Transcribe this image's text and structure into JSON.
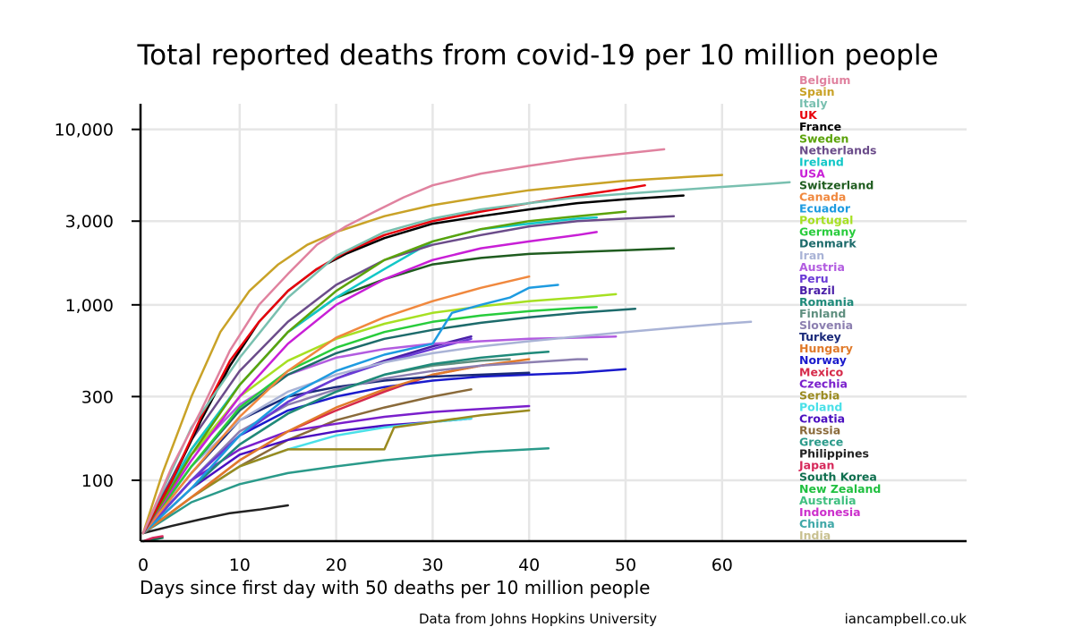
{
  "chart_data": {
    "type": "line",
    "title": "Total reported deaths from covid-19 per 10 million people",
    "xlabel": "Days since first day with 50 deaths per 10 million people",
    "ylabel": "",
    "yscale": "log",
    "xlim": [
      0,
      85
    ],
    "ylim": [
      45,
      14000
    ],
    "x_ticks": [
      0,
      10,
      20,
      30,
      40,
      50,
      60
    ],
    "y_ticks": [
      100,
      300,
      1000,
      3000,
      10000
    ],
    "y_tick_labels": [
      "100",
      "300",
      "1,000",
      "3,000",
      "10,000"
    ],
    "grid": true,
    "legend_position": "right",
    "source_note": "Data from Johns Hopkins University",
    "credit": "iancampbell.co.uk",
    "series": [
      {
        "name": "Belgium",
        "color": "#e0829f",
        "x": [
          0,
          3,
          6,
          9,
          12,
          15,
          18,
          21,
          24,
          27,
          30,
          35,
          40,
          45,
          50,
          54
        ],
        "y": [
          50,
          120,
          250,
          550,
          1000,
          1500,
          2200,
          2800,
          3400,
          4100,
          4800,
          5600,
          6200,
          6800,
          7300,
          7700
        ]
      },
      {
        "name": "Spain",
        "color": "#c9a227",
        "x": [
          0,
          2,
          5,
          8,
          11,
          14,
          17,
          20,
          25,
          30,
          35,
          40,
          45,
          50,
          55,
          60
        ],
        "y": [
          50,
          110,
          300,
          700,
          1200,
          1700,
          2200,
          2600,
          3200,
          3700,
          4100,
          4500,
          4800,
          5100,
          5300,
          5500
        ]
      },
      {
        "name": "Italy",
        "color": "#79c0b0",
        "x": [
          0,
          5,
          10,
          15,
          20,
          25,
          30,
          35,
          40,
          45,
          50,
          55,
          60,
          65,
          67
        ],
        "y": [
          50,
          200,
          500,
          1100,
          1900,
          2600,
          3100,
          3500,
          3800,
          4100,
          4300,
          4500,
          4700,
          4900,
          5000
        ]
      },
      {
        "name": "UK",
        "color": "#e8000b",
        "x": [
          0,
          3,
          6,
          9,
          12,
          15,
          18,
          21,
          25,
          30,
          35,
          40,
          45,
          50,
          52
        ],
        "y": [
          50,
          100,
          230,
          480,
          800,
          1200,
          1600,
          2000,
          2500,
          3000,
          3400,
          3800,
          4200,
          4600,
          4800
        ]
      },
      {
        "name": "France",
        "color": "#000000",
        "x": [
          0,
          3,
          6,
          9,
          12,
          15,
          18,
          21,
          25,
          30,
          35,
          40,
          45,
          50,
          56
        ],
        "y": [
          50,
          100,
          220,
          450,
          800,
          1200,
          1600,
          1950,
          2400,
          2900,
          3200,
          3500,
          3800,
          4000,
          4200
        ]
      },
      {
        "name": "Sweden",
        "color": "#5ba30a",
        "x": [
          0,
          5,
          10,
          15,
          20,
          25,
          30,
          35,
          40,
          45,
          50
        ],
        "y": [
          50,
          140,
          350,
          700,
          1200,
          1800,
          2300,
          2700,
          3000,
          3200,
          3400
        ]
      },
      {
        "name": "Netherlands",
        "color": "#6b4c8a",
        "x": [
          0,
          5,
          10,
          15,
          20,
          25,
          30,
          35,
          40,
          45,
          50,
          55
        ],
        "y": [
          50,
          170,
          420,
          800,
          1300,
          1800,
          2200,
          2500,
          2800,
          3000,
          3100,
          3200
        ]
      },
      {
        "name": "Ireland",
        "color": "#12c7c7",
        "x": [
          0,
          5,
          10,
          15,
          20,
          25,
          30,
          35,
          40,
          45,
          47
        ],
        "y": [
          50,
          150,
          350,
          700,
          1100,
          1600,
          2300,
          2700,
          2900,
          3100,
          3150
        ]
      },
      {
        "name": "USA",
        "color": "#c81fd6",
        "x": [
          0,
          5,
          10,
          15,
          20,
          25,
          30,
          35,
          40,
          45,
          47
        ],
        "y": [
          50,
          130,
          300,
          600,
          1000,
          1400,
          1800,
          2100,
          2300,
          2500,
          2600
        ]
      },
      {
        "name": "Switzerland",
        "color": "#1f5c1f",
        "x": [
          0,
          5,
          10,
          15,
          20,
          25,
          30,
          35,
          40,
          45,
          50,
          55
        ],
        "y": [
          50,
          150,
          350,
          700,
          1100,
          1400,
          1700,
          1850,
          1950,
          2000,
          2050,
          2100
        ]
      },
      {
        "name": "Canada",
        "color": "#f0883e",
        "x": [
          0,
          5,
          10,
          15,
          20,
          25,
          30,
          35,
          40
        ],
        "y": [
          50,
          110,
          230,
          420,
          650,
          850,
          1050,
          1250,
          1450
        ]
      },
      {
        "name": "Ecuador",
        "color": "#1e9be0",
        "x": [
          0,
          5,
          10,
          15,
          20,
          25,
          30,
          32,
          35,
          38,
          40,
          43
        ],
        "y": [
          50,
          90,
          180,
          300,
          420,
          520,
          600,
          900,
          1000,
          1100,
          1250,
          1300
        ]
      },
      {
        "name": "Portugal",
        "color": "#a6e022",
        "x": [
          0,
          5,
          10,
          15,
          20,
          25,
          30,
          35,
          40,
          45,
          49
        ],
        "y": [
          50,
          140,
          300,
          480,
          640,
          780,
          900,
          980,
          1050,
          1100,
          1150
        ]
      },
      {
        "name": "Germany",
        "color": "#28cc3c",
        "x": [
          0,
          5,
          10,
          15,
          20,
          25,
          30,
          35,
          40,
          45,
          47
        ],
        "y": [
          50,
          120,
          260,
          420,
          570,
          700,
          800,
          870,
          920,
          960,
          970
        ]
      },
      {
        "name": "Denmark",
        "color": "#1d6b6b",
        "x": [
          0,
          5,
          10,
          15,
          20,
          25,
          30,
          35,
          40,
          45,
          51
        ],
        "y": [
          50,
          120,
          250,
          400,
          530,
          640,
          720,
          790,
          850,
          900,
          950
        ]
      },
      {
        "name": "Iran",
        "color": "#a9b3d6",
        "x": [
          0,
          5,
          10,
          15,
          20,
          25,
          30,
          35,
          40,
          45,
          50,
          55,
          60,
          63
        ],
        "y": [
          50,
          120,
          220,
          320,
          400,
          470,
          530,
          580,
          620,
          660,
          700,
          740,
          780,
          800
        ]
      },
      {
        "name": "Austria",
        "color": "#b25ce0",
        "x": [
          0,
          5,
          10,
          15,
          20,
          25,
          30,
          35,
          40,
          45,
          49
        ],
        "y": [
          50,
          140,
          270,
          400,
          500,
          560,
          600,
          620,
          640,
          650,
          660
        ]
      },
      {
        "name": "Peru",
        "color": "#6a3bd6",
        "x": [
          0,
          5,
          10,
          15,
          20,
          25,
          30,
          34
        ],
        "y": [
          50,
          100,
          180,
          280,
          380,
          470,
          560,
          640
        ]
      },
      {
        "name": "Brazil",
        "color": "#4a1fa8",
        "x": [
          0,
          5,
          10,
          15,
          20,
          25,
          30,
          34
        ],
        "y": [
          50,
          100,
          180,
          280,
          380,
          480,
          580,
          660
        ]
      },
      {
        "name": "Romania",
        "color": "#1f8a7a",
        "x": [
          0,
          5,
          10,
          15,
          20,
          25,
          30,
          35,
          40,
          42
        ],
        "y": [
          50,
          90,
          160,
          240,
          320,
          400,
          460,
          500,
          530,
          540
        ]
      },
      {
        "name": "Finland",
        "color": "#5f8f7f",
        "x": [
          0,
          5,
          10,
          15,
          20,
          25,
          30,
          35,
          38
        ],
        "y": [
          50,
          90,
          160,
          240,
          320,
          400,
          450,
          480,
          490
        ]
      },
      {
        "name": "Slovenia",
        "color": "#8c7fb0",
        "x": [
          0,
          5,
          10,
          15,
          20,
          25,
          30,
          35,
          40,
          45,
          46
        ],
        "y": [
          50,
          100,
          190,
          270,
          330,
          380,
          420,
          450,
          470,
          490,
          490
        ]
      },
      {
        "name": "Turkey",
        "color": "#1a2a7a",
        "x": [
          0,
          5,
          10,
          15,
          20,
          25,
          30,
          35,
          40
        ],
        "y": [
          50,
          110,
          220,
          300,
          340,
          370,
          390,
          400,
          410
        ]
      },
      {
        "name": "Hungary",
        "color": "#e07a2a",
        "x": [
          0,
          5,
          10,
          15,
          20,
          25,
          30,
          35,
          40
        ],
        "y": [
          50,
          80,
          130,
          190,
          260,
          330,
          400,
          450,
          490
        ]
      },
      {
        "name": "Norway",
        "color": "#1a1acc",
        "x": [
          0,
          5,
          10,
          15,
          20,
          25,
          30,
          35,
          40,
          45,
          50
        ],
        "y": [
          50,
          100,
          180,
          250,
          300,
          340,
          370,
          390,
          400,
          410,
          430
        ]
      },
      {
        "name": "Mexico",
        "color": "#d62a4a",
        "x": [
          0,
          5,
          10,
          15,
          20,
          25,
          30,
          35,
          38
        ],
        "y": [
          50,
          80,
          130,
          190,
          250,
          320,
          400,
          450,
          470
        ]
      },
      {
        "name": "Czechia",
        "color": "#7a1fcc",
        "x": [
          0,
          5,
          10,
          15,
          20,
          25,
          30,
          35,
          40
        ],
        "y": [
          50,
          100,
          150,
          190,
          210,
          230,
          245,
          255,
          265
        ]
      },
      {
        "name": "Serbia",
        "color": "#9a8a1f",
        "x": [
          0,
          5,
          10,
          15,
          20,
          25,
          26,
          30,
          35,
          40
        ],
        "y": [
          50,
          80,
          120,
          150,
          150,
          150,
          200,
          215,
          235,
          250
        ]
      },
      {
        "name": "Poland",
        "color": "#4ae0e8",
        "x": [
          0,
          5,
          10,
          15,
          20,
          25,
          30,
          34
        ],
        "y": [
          50,
          80,
          120,
          150,
          180,
          200,
          215,
          225
        ]
      },
      {
        "name": "Croatia",
        "color": "#4a0fc0",
        "x": [
          0,
          5,
          10,
          15,
          20,
          25,
          30,
          34
        ],
        "y": [
          50,
          90,
          140,
          170,
          190,
          205,
          215,
          225
        ]
      },
      {
        "name": "Russia",
        "color": "#8a6a3a",
        "x": [
          0,
          5,
          10,
          15,
          20,
          25,
          30,
          34
        ],
        "y": [
          50,
          80,
          120,
          170,
          220,
          260,
          300,
          330
        ]
      },
      {
        "name": "Greece",
        "color": "#2a9a8a",
        "x": [
          0,
          5,
          10,
          15,
          20,
          25,
          30,
          35,
          40,
          42
        ],
        "y": [
          50,
          75,
          95,
          110,
          120,
          130,
          138,
          145,
          150,
          152
        ]
      },
      {
        "name": "Philippines",
        "color": "#222222",
        "x": [
          0,
          3,
          6,
          9,
          12,
          15
        ],
        "y": [
          50,
          55,
          60,
          65,
          68,
          72
        ]
      },
      {
        "name": "Japan",
        "color": "#d6285a",
        "x": [
          0,
          1,
          2
        ],
        "y": [
          45,
          47,
          48
        ]
      },
      {
        "name": "South Korea",
        "color": "#0f6f4f",
        "x": [
          0,
          1,
          2
        ],
        "y": [
          45,
          46,
          47
        ]
      },
      {
        "name": "New Zealand",
        "color": "#20c040",
        "x": [
          0,
          1
        ],
        "y": [
          45,
          46
        ]
      },
      {
        "name": "Australia",
        "color": "#40c080",
        "x": [
          0,
          1
        ],
        "y": [
          45,
          46
        ]
      },
      {
        "name": "Indonesia",
        "color": "#cc30cc",
        "x": [
          0,
          1
        ],
        "y": [
          45,
          46
        ]
      },
      {
        "name": "China",
        "color": "#40a8a8",
        "x": [
          0,
          1
        ],
        "y": [
          45,
          46
        ]
      },
      {
        "name": "India",
        "color": "#c8c090",
        "x": [
          0,
          1
        ],
        "y": [
          45,
          46
        ]
      }
    ]
  }
}
